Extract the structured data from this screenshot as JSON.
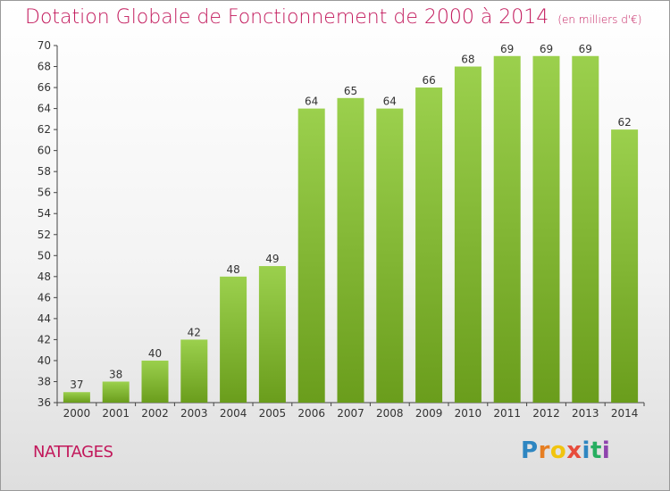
{
  "header": {
    "title": "Dotation Globale de Fonctionnement de 2000 à 2014",
    "unit": "(en milliers d'€)"
  },
  "footer": {
    "commune": "NATTAGES",
    "logo": [
      "P",
      "r",
      "o",
      "x",
      "i",
      "t",
      "i"
    ]
  },
  "colors": {
    "title": "#c2185b",
    "bar_light": "#9bd04d",
    "bar_dark": "#6a9d1c",
    "axis": "#444444"
  },
  "chart_data": {
    "type": "bar",
    "title": "Dotation Globale de Fonctionnement de 2000 à 2014",
    "subtitle": "(en milliers d'€)",
    "xlabel": "",
    "ylabel": "",
    "categories": [
      "2000",
      "2001",
      "2002",
      "2003",
      "2004",
      "2005",
      "2006",
      "2007",
      "2008",
      "2009",
      "2010",
      "2011",
      "2012",
      "2013",
      "2014"
    ],
    "values": [
      37,
      38,
      40,
      42,
      48,
      49,
      64,
      65,
      64,
      66,
      68,
      69,
      69,
      69,
      62
    ],
    "ylim": [
      36,
      70
    ],
    "yticks": [
      36,
      38,
      40,
      42,
      44,
      46,
      48,
      50,
      52,
      54,
      56,
      58,
      60,
      62,
      64,
      66,
      68,
      70
    ],
    "grid": false,
    "legend": "none"
  }
}
